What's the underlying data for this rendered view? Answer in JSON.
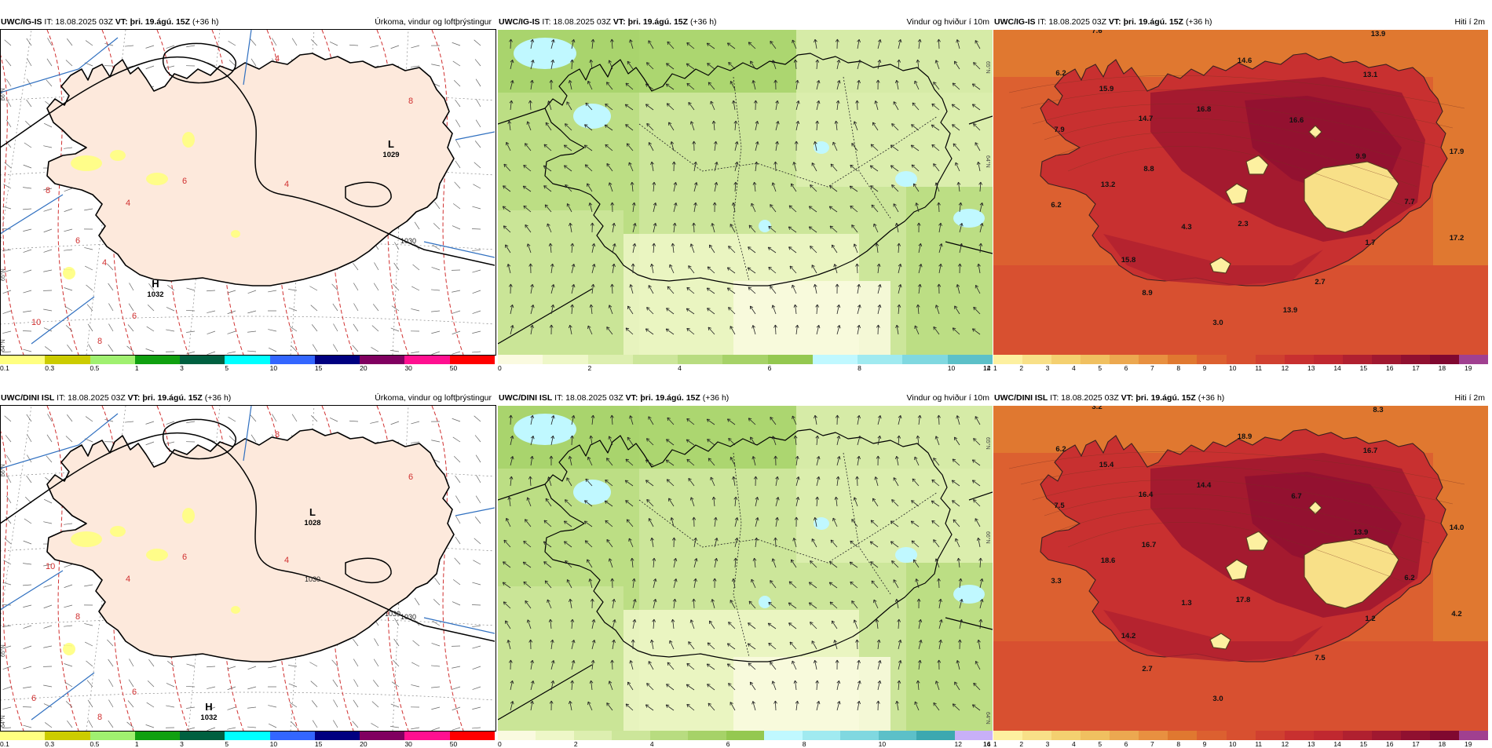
{
  "panels": [
    {
      "id": "p1",
      "model": "UWC/IG-IS",
      "it_label": "IT: 18.08.2025 03Z",
      "vt_label": "VT: þri. 19.ágú. 15Z",
      "lead": "(+36 h)",
      "title": "Úrkoma, vindur og loftþrýstingur",
      "kind": "precip",
      "legend_colors": [
        "#ffff80",
        "#cccc00",
        "#a0f070",
        "#10a010",
        "#006040",
        "#00ffff",
        "#3366ff",
        "#000080",
        "#800060",
        "#ff1090",
        "#ff0000"
      ],
      "legend_ticks": [
        "0.1",
        "0.3",
        "0.5",
        "1",
        "3",
        "5",
        "10",
        "15",
        "20",
        "30",
        "50"
      ],
      "pressure_labels": [
        {
          "type": "L",
          "value": "1029"
        },
        {
          "type": "H",
          "value": "1032"
        }
      ],
      "isobar_labels": [
        "1030"
      ],
      "isotherm_labels": [
        "8",
        "6",
        "6",
        "4",
        "6",
        "4",
        "8",
        "4",
        "10",
        "8",
        "4"
      ],
      "lat_labels": [
        "66°N",
        "65°N",
        "64°N"
      ]
    },
    {
      "id": "p2",
      "model": "UWC/IG-IS",
      "it_label": "IT: 18.08.2025 03Z",
      "vt_label": "VT: þri. 19.ágú. 15Z",
      "lead": "(+36 h)",
      "title": "Vindur og hviður í 10m",
      "kind": "wind",
      "legend_colors": [
        "#fafae0",
        "#eef7c8",
        "#ddefb0",
        "#cce69a",
        "#b8dc80",
        "#a6d268",
        "#94c850",
        "#c0f8ff",
        "#a0eaf0",
        "#80d8e0",
        "#5cc0c8"
      ],
      "legend_ticks": [
        "0",
        "2",
        "4",
        "6",
        "8",
        "10",
        "12",
        "14"
      ],
      "lat_labels": [
        "64°N",
        "65°N"
      ]
    },
    {
      "id": "p3",
      "model": "UWC/IG-IS",
      "it_label": "IT: 18.08.2025 03Z",
      "vt_label": "VT: þri. 19.ágú. 15Z",
      "lead": "(+36 h)",
      "title": "Hiti í 2m",
      "kind": "temp",
      "legend_colors": [
        "#fdf0a0",
        "#f8e088",
        "#f4d070",
        "#f0c060",
        "#eca850",
        "#e89040",
        "#e07830",
        "#dc6030",
        "#d85030",
        "#d04030",
        "#c83030",
        "#c02830",
        "#b02030",
        "#a01830",
        "#901030",
        "#800830",
        "#a04090"
      ],
      "legend_ticks": [
        "1",
        "2",
        "3",
        "4",
        "5",
        "6",
        "7",
        "8",
        "9",
        "10",
        "11",
        "12",
        "13",
        "14",
        "15",
        "16",
        "17",
        "18",
        "19"
      ],
      "temp_labels": [
        "7.6",
        "13.9",
        "6.2",
        "15.9",
        "14.6",
        "13.1",
        "16.8",
        "7.9",
        "14.7",
        "16.6",
        "9.9",
        "17.9",
        "8.8",
        "13.2",
        "7.7",
        "6.2",
        "4.3",
        "2.3",
        "1.7",
        "17.2",
        "15.8",
        "2.7",
        "8.9",
        "3.0",
        "13.9"
      ]
    },
    {
      "id": "p4",
      "model": "UWC/DINI ISL",
      "it_label": "IT: 18.08.2025 03Z",
      "vt_label": "VT: þri. 19.ágú. 15Z",
      "lead": "(+36 h)",
      "title": "Úrkoma, vindur og loftþrýstingur",
      "kind": "precip",
      "legend_colors": [
        "#ffff80",
        "#cccc00",
        "#a0f070",
        "#10a010",
        "#006040",
        "#00ffff",
        "#3366ff",
        "#000080",
        "#800060",
        "#ff1090",
        "#ff0000"
      ],
      "legend_ticks": [
        "0.1",
        "0.3",
        "0.5",
        "1",
        "3",
        "5",
        "10",
        "15",
        "20",
        "30",
        "50"
      ],
      "pressure_labels": [
        {
          "type": "L",
          "value": "1028"
        },
        {
          "type": "H",
          "value": "1032"
        }
      ],
      "isobar_labels": [
        "1030",
        "1030",
        "1030"
      ],
      "isotherm_labels": [
        "10",
        "8",
        "6",
        "4",
        "6",
        "4",
        "6",
        "8",
        "6",
        "8"
      ],
      "lat_labels": [
        "66°N",
        "65°N",
        "64°N"
      ]
    },
    {
      "id": "p5",
      "model": "UWC/DINI ISL",
      "it_label": "IT: 18.08.2025 03Z",
      "vt_label": "VT: þri. 19.ágú. 15Z",
      "lead": "(+36 h)",
      "title": "Vindur og hviður í 10m",
      "kind": "wind",
      "legend_colors": [
        "#fafae0",
        "#eef7c8",
        "#ddefb0",
        "#cce69a",
        "#b8dc80",
        "#a6d268",
        "#94c850",
        "#c0f8ff",
        "#a0eaf0",
        "#80d8e0",
        "#5cc0c8",
        "#3ca8b0",
        "#c8b0f8"
      ],
      "legend_ticks": [
        "0",
        "2",
        "4",
        "6",
        "8",
        "10",
        "12",
        "14",
        "16"
      ],
      "lat_labels": [
        "66°N",
        "65°N",
        "64°N"
      ]
    },
    {
      "id": "p6",
      "model": "UWC/DINI ISL",
      "it_label": "IT: 18.08.2025 03Z",
      "vt_label": "VT: þri. 19.ágú. 15Z",
      "lead": "(+36 h)",
      "title": "Hiti í 2m",
      "kind": "temp",
      "legend_colors": [
        "#fdf0a0",
        "#f8e088",
        "#f4d070",
        "#f0c060",
        "#eca850",
        "#e89040",
        "#e07830",
        "#dc6030",
        "#d85030",
        "#d04030",
        "#c83030",
        "#c02830",
        "#b02030",
        "#a01830",
        "#901030",
        "#800830",
        "#a04090"
      ],
      "legend_ticks": [
        "1",
        "2",
        "3",
        "4",
        "5",
        "6",
        "7",
        "8",
        "9",
        "10",
        "11",
        "12",
        "13",
        "14",
        "15",
        "16",
        "17",
        "18",
        "19"
      ],
      "temp_labels": [
        "3.2",
        "8.3",
        "6.2",
        "15.4",
        "18.9",
        "16.7",
        "14.4",
        "7.5",
        "16.4",
        "6.7",
        "13.9",
        "14.0",
        "16.7",
        "18.6",
        "6.2",
        "3.3",
        "1.3",
        "17.8",
        "1.2",
        "4.2",
        "14.2",
        "7.5",
        "2.7",
        "3.0"
      ]
    }
  ]
}
